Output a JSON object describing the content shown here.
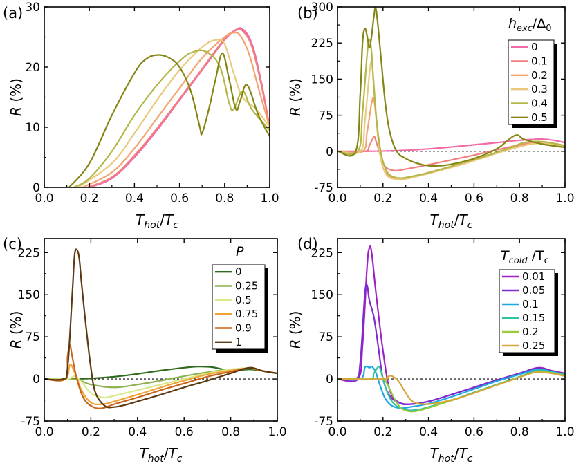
{
  "chart_data": [
    {
      "panel": "(a)",
      "type": "line",
      "xlabel": "T_hot/T_c",
      "ylabel": "R (%)",
      "xlim": [
        0.0,
        1.0
      ],
      "ylim": [
        0,
        30
      ],
      "xticks": [
        "0.0",
        "0.2",
        "0.4",
        "0.6",
        "0.8",
        "1.0"
      ],
      "yticks": [
        "0",
        "10",
        "20",
        "30"
      ],
      "zero_line": false,
      "legend": null,
      "series": [
        {
          "name": "0",
          "color": "#f06aa8",
          "x": [
            0.2,
            0.3,
            0.4,
            0.5,
            0.6,
            0.7,
            0.8,
            0.85,
            0.88,
            0.92,
            0.96,
            1.0
          ],
          "y": [
            0,
            1.5,
            5,
            9.5,
            14.5,
            19.5,
            24.5,
            26.2,
            26.3,
            24,
            18,
            10
          ]
        },
        {
          "name": "0.1",
          "color": "#f08080",
          "x": [
            0.19,
            0.3,
            0.4,
            0.5,
            0.6,
            0.7,
            0.8,
            0.85,
            0.88,
            0.92,
            0.96,
            1.0
          ],
          "y": [
            0,
            1.7,
            5.3,
            9.8,
            14.7,
            19.7,
            24.7,
            26.1,
            26.0,
            23.5,
            17.5,
            10
          ]
        },
        {
          "name": "0.2",
          "color": "#f2a36f",
          "x": [
            0.17,
            0.3,
            0.4,
            0.5,
            0.6,
            0.7,
            0.8,
            0.84,
            0.87,
            0.91,
            0.95,
            1.0
          ],
          "y": [
            0,
            2.5,
            6.5,
            11.5,
            16.5,
            21.5,
            25,
            25.7,
            25.2,
            22,
            16.5,
            10
          ]
        },
        {
          "name": "0.3",
          "color": "#ebc97c",
          "x": [
            0.15,
            0.3,
            0.4,
            0.5,
            0.6,
            0.7,
            0.76,
            0.8,
            0.84,
            0.88,
            0.94,
            1.0
          ],
          "y": [
            0,
            4,
            9,
            14.5,
            19.5,
            23.3,
            24.5,
            23.8,
            19,
            15,
            13,
            10
          ]
        },
        {
          "name": "0.4",
          "color": "#b3b748",
          "x": [
            0.13,
            0.2,
            0.3,
            0.4,
            0.5,
            0.6,
            0.66,
            0.72,
            0.78,
            0.82,
            0.84,
            0.88,
            0.92,
            1.0
          ],
          "y": [
            0,
            1.5,
            6,
            12,
            17,
            21,
            22.5,
            22.5,
            20,
            14,
            13,
            16,
            13,
            9.5
          ]
        },
        {
          "name": "0.5",
          "color": "#858514",
          "x": [
            0.11,
            0.2,
            0.3,
            0.4,
            0.45,
            0.5,
            0.55,
            0.6,
            0.65,
            0.69,
            0.7,
            0.73,
            0.76,
            0.79,
            0.82,
            0.85,
            0.87,
            0.9,
            0.95,
            1.0
          ],
          "y": [
            0,
            4,
            12,
            19,
            21.3,
            22,
            21.6,
            20,
            16,
            10,
            9,
            13,
            18,
            22.3,
            18,
            13,
            14.5,
            17,
            12,
            8.5
          ]
        }
      ]
    },
    {
      "panel": "(b)",
      "type": "line",
      "xlabel": "T_hot/T_c",
      "ylabel": "R (%)",
      "xlim": [
        0.0,
        1.0
      ],
      "ylim": [
        -75,
        300
      ],
      "xticks": [
        "0.0",
        "0.2",
        "0.4",
        "0.6",
        "0.8",
        "1.0"
      ],
      "yticks": [
        "-75",
        "0",
        "75",
        "150",
        "225",
        "300"
      ],
      "zero_line": true,
      "legend": {
        "title_main": "h",
        "title_sub": "exc",
        "title_rest": "/Δ",
        "title_sub2": "0",
        "entries": [
          "0",
          "0.1",
          "0.2",
          "0.3",
          "0.4",
          "0.5"
        ]
      },
      "series": [
        {
          "name": "0",
          "color": "#f06aa8",
          "x": [
            0,
            0.1,
            0.2,
            0.3,
            0.4,
            0.5,
            0.6,
            0.7,
            0.8,
            0.85,
            0.9,
            0.95,
            1.0
          ],
          "y": [
            0,
            0,
            0.5,
            2,
            5,
            9,
            13.5,
            18,
            23,
            24.5,
            25.5,
            23,
            18
          ]
        },
        {
          "name": "0.1",
          "color": "#f08080",
          "x": [
            0,
            0.12,
            0.14,
            0.16,
            0.17,
            0.19,
            0.21,
            0.25,
            0.3,
            0.4,
            0.5,
            0.6,
            0.7,
            0.8,
            0.88,
            0.95,
            1.0
          ],
          "y": [
            0,
            0,
            12,
            30,
            20,
            -10,
            -32,
            -40,
            -37,
            -28,
            -18,
            -8,
            3,
            13,
            18,
            14,
            10
          ]
        },
        {
          "name": "0.2",
          "color": "#f2a36f",
          "x": [
            0,
            0.11,
            0.13,
            0.15,
            0.16,
            0.17,
            0.19,
            0.22,
            0.27,
            0.35,
            0.45,
            0.55,
            0.65,
            0.75,
            0.85,
            0.92,
            1.0
          ],
          "y": [
            0,
            0,
            40,
            100,
            108,
            70,
            -15,
            -48,
            -56,
            -50,
            -38,
            -25,
            -10,
            4,
            16,
            17,
            11
          ]
        },
        {
          "name": "0.3",
          "color": "#ebc97c",
          "x": [
            0,
            0.1,
            0.12,
            0.14,
            0.15,
            0.16,
            0.18,
            0.21,
            0.27,
            0.35,
            0.45,
            0.55,
            0.65,
            0.75,
            0.85,
            0.92,
            1.0
          ],
          "y": [
            0,
            0,
            60,
            160,
            185,
            140,
            20,
            -45,
            -58,
            -52,
            -40,
            -27,
            -12,
            3,
            15,
            16,
            10
          ]
        },
        {
          "name": "0.4",
          "color": "#b3b748",
          "x": [
            0,
            0.09,
            0.11,
            0.13,
            0.14,
            0.15,
            0.16,
            0.18,
            0.21,
            0.26,
            0.35,
            0.45,
            0.55,
            0.65,
            0.75,
            0.82,
            0.9,
            1.0
          ],
          "y": [
            0,
            0,
            80,
            200,
            232,
            205,
            130,
            30,
            -35,
            -55,
            -50,
            -38,
            -24,
            -10,
            6,
            18,
            20,
            12
          ]
        },
        {
          "name": "0.5",
          "color": "#858514",
          "x": [
            0,
            0.08,
            0.1,
            0.11,
            0.12,
            0.13,
            0.14,
            0.15,
            0.16,
            0.17,
            0.19,
            0.21,
            0.23,
            0.26,
            0.3,
            0.35,
            0.4,
            0.45,
            0.5,
            0.6,
            0.7,
            0.78,
            0.82,
            0.9,
            1.0
          ],
          "y": [
            0,
            0,
            120,
            225,
            255,
            240,
            215,
            240,
            280,
            293,
            200,
            100,
            40,
            0,
            -15,
            -25,
            -30,
            -30,
            -27,
            -15,
            5,
            33,
            25,
            15,
            8
          ]
        }
      ]
    },
    {
      "panel": "(c)",
      "type": "line",
      "xlabel": "T_hot/T_c",
      "ylabel": "R (%)",
      "xlim": [
        0.0,
        1.0
      ],
      "ylim": [
        -75,
        250
      ],
      "xticks": [
        "0.0",
        "0.2",
        "0.4",
        "0.6",
        "0.8",
        "1.0"
      ],
      "yticks": [
        "-75",
        "0",
        "75",
        "150",
        "225"
      ],
      "zero_line": true,
      "legend": {
        "title_main": "P",
        "title_sub": "",
        "title_rest": "",
        "title_sub2": "",
        "entries": [
          "0",
          "0.25",
          "0.5",
          "0.75",
          "0.9",
          "1"
        ]
      },
      "series": [
        {
          "name": "0",
          "color": "#2f6b1e",
          "x": [
            0,
            0.1,
            0.2,
            0.3,
            0.4,
            0.5,
            0.6,
            0.66,
            0.72,
            0.8,
            0.88,
            0.94,
            1.0
          ],
          "y": [
            0,
            0,
            1,
            4,
            9,
            15,
            20,
            22,
            21,
            15,
            17,
            14,
            10
          ]
        },
        {
          "name": "0.25",
          "color": "#8db14f",
          "x": [
            0,
            0.1,
            0.15,
            0.2,
            0.3,
            0.4,
            0.5,
            0.6,
            0.7,
            0.8,
            0.88,
            0.94,
            1.0
          ],
          "y": [
            0,
            0,
            -2,
            -10,
            -15,
            -10,
            -3,
            5,
            12,
            17,
            19,
            14,
            10
          ]
        },
        {
          "name": "0.5",
          "color": "#d9e888",
          "x": [
            0,
            0.1,
            0.13,
            0.16,
            0.2,
            0.25,
            0.3,
            0.4,
            0.5,
            0.6,
            0.7,
            0.8,
            0.88,
            0.94,
            1.0
          ],
          "y": [
            0,
            0,
            5,
            -5,
            -25,
            -33,
            -30,
            -20,
            -10,
            0,
            10,
            17,
            19,
            14,
            10
          ]
        },
        {
          "name": "0.75",
          "color": "#f2a337",
          "x": [
            0,
            0.09,
            0.11,
            0.13,
            0.16,
            0.2,
            0.25,
            0.3,
            0.4,
            0.5,
            0.6,
            0.7,
            0.8,
            0.88,
            0.94,
            1.0
          ],
          "y": [
            0,
            0,
            25,
            12,
            -20,
            -42,
            -45,
            -40,
            -28,
            -15,
            -3,
            8,
            15,
            19,
            14,
            10
          ]
        },
        {
          "name": "0.9",
          "color": "#c8651b",
          "x": [
            0,
            0.09,
            0.1,
            0.11,
            0.12,
            0.14,
            0.17,
            0.21,
            0.25,
            0.3,
            0.4,
            0.5,
            0.6,
            0.7,
            0.8,
            0.88,
            0.94,
            1.0
          ],
          "y": [
            0,
            0,
            40,
            60,
            40,
            0,
            -35,
            -50,
            -52,
            -45,
            -33,
            -20,
            -8,
            4,
            13,
            19,
            14,
            10
          ]
        },
        {
          "name": "1",
          "color": "#5c3a12",
          "x": [
            0,
            0.08,
            0.1,
            0.12,
            0.13,
            0.14,
            0.15,
            0.16,
            0.18,
            0.2,
            0.22,
            0.26,
            0.3,
            0.35,
            0.4,
            0.5,
            0.6,
            0.7,
            0.8,
            0.88,
            0.94,
            1.0
          ],
          "y": [
            0,
            0,
            20,
            150,
            220,
            230,
            215,
            170,
            90,
            20,
            -25,
            -48,
            -50,
            -46,
            -40,
            -28,
            -15,
            -3,
            10,
            20,
            14,
            10
          ]
        }
      ]
    },
    {
      "panel": "(d)",
      "type": "line",
      "xlabel": "T_hot/T_c",
      "ylabel": "R (%)",
      "xlim": [
        0.0,
        1.0
      ],
      "ylim": [
        -75,
        250
      ],
      "xticks": [
        "0.0",
        "0.2",
        "0.4",
        "0.6",
        "0.8",
        "1.0"
      ],
      "yticks": [
        "-75",
        "0",
        "75",
        "150",
        "225"
      ],
      "zero_line": true,
      "legend": {
        "title_main": "T",
        "title_sub": "cold",
        "title_rest": " /T",
        "title_sub2": "c",
        "entries": [
          "0.01",
          "0.05",
          "0.1",
          "0.15",
          "0.2",
          "0.25"
        ]
      },
      "series": [
        {
          "name": "0.01",
          "color": "#a020c8",
          "x": [
            0,
            0.09,
            0.11,
            0.13,
            0.14,
            0.15,
            0.17,
            0.2,
            0.23,
            0.27,
            0.32,
            0.4,
            0.5,
            0.6,
            0.7,
            0.8,
            0.88,
            0.94,
            1.0
          ],
          "y": [
            0,
            0,
            60,
            200,
            233,
            225,
            150,
            50,
            -20,
            -42,
            -45,
            -40,
            -28,
            -15,
            -2,
            10,
            20,
            15,
            10
          ]
        },
        {
          "name": "0.05",
          "color": "#7e2cd0",
          "x": [
            0,
            0.08,
            0.1,
            0.12,
            0.13,
            0.14,
            0.16,
            0.18,
            0.2,
            0.23,
            0.27,
            0.32,
            0.4,
            0.5,
            0.6,
            0.7,
            0.8,
            0.88,
            0.94,
            1.0
          ],
          "y": [
            0,
            0,
            30,
            150,
            167,
            140,
            110,
            55,
            0,
            -30,
            -42,
            -45,
            -40,
            -28,
            -15,
            -2,
            10,
            19,
            14,
            9
          ]
        },
        {
          "name": "0.1",
          "color": "#1fa8e0",
          "x": [
            0,
            0.1,
            0.12,
            0.13,
            0.14,
            0.15,
            0.16,
            0.17,
            0.19,
            0.21,
            0.24,
            0.28,
            0.32,
            0.4,
            0.5,
            0.6,
            0.7,
            0.8,
            0.88,
            0.94,
            1.0
          ],
          "y": [
            0,
            0,
            20,
            22,
            20,
            22,
            18,
            10,
            -15,
            -35,
            -48,
            -52,
            -50,
            -44,
            -32,
            -18,
            -4,
            8,
            17,
            13,
            8
          ]
        },
        {
          "name": "0.15",
          "color": "#2ec4a0",
          "x": [
            0,
            0.14,
            0.16,
            0.18,
            0.19,
            0.2,
            0.22,
            0.25,
            0.3,
            0.35,
            0.4,
            0.5,
            0.6,
            0.7,
            0.8,
            0.88,
            0.94,
            1.0
          ],
          "y": [
            0,
            0,
            10,
            22,
            15,
            0,
            -25,
            -45,
            -55,
            -55,
            -50,
            -38,
            -24,
            -10,
            4,
            15,
            12,
            7
          ]
        },
        {
          "name": "0.2",
          "color": "#9acb3a",
          "x": [
            0,
            0.18,
            0.2,
            0.22,
            0.25,
            0.28,
            0.32,
            0.37,
            0.45,
            0.55,
            0.65,
            0.75,
            0.85,
            0.88,
            0.94,
            1.0
          ],
          "y": [
            0,
            0,
            2,
            -10,
            -35,
            -52,
            -58,
            -55,
            -45,
            -32,
            -18,
            -4,
            10,
            13,
            11,
            6
          ]
        },
        {
          "name": "0.25",
          "color": "#d6a83a",
          "x": [
            0,
            0.2,
            0.22,
            0.24,
            0.27,
            0.3,
            0.33,
            0.38,
            0.45,
            0.55,
            0.65,
            0.75,
            0.85,
            0.88,
            0.94,
            1.0
          ],
          "y": [
            0,
            0,
            4,
            5,
            -5,
            -25,
            -40,
            -45,
            -42,
            -32,
            -18,
            -4,
            10,
            12,
            10,
            5
          ]
        }
      ]
    }
  ]
}
